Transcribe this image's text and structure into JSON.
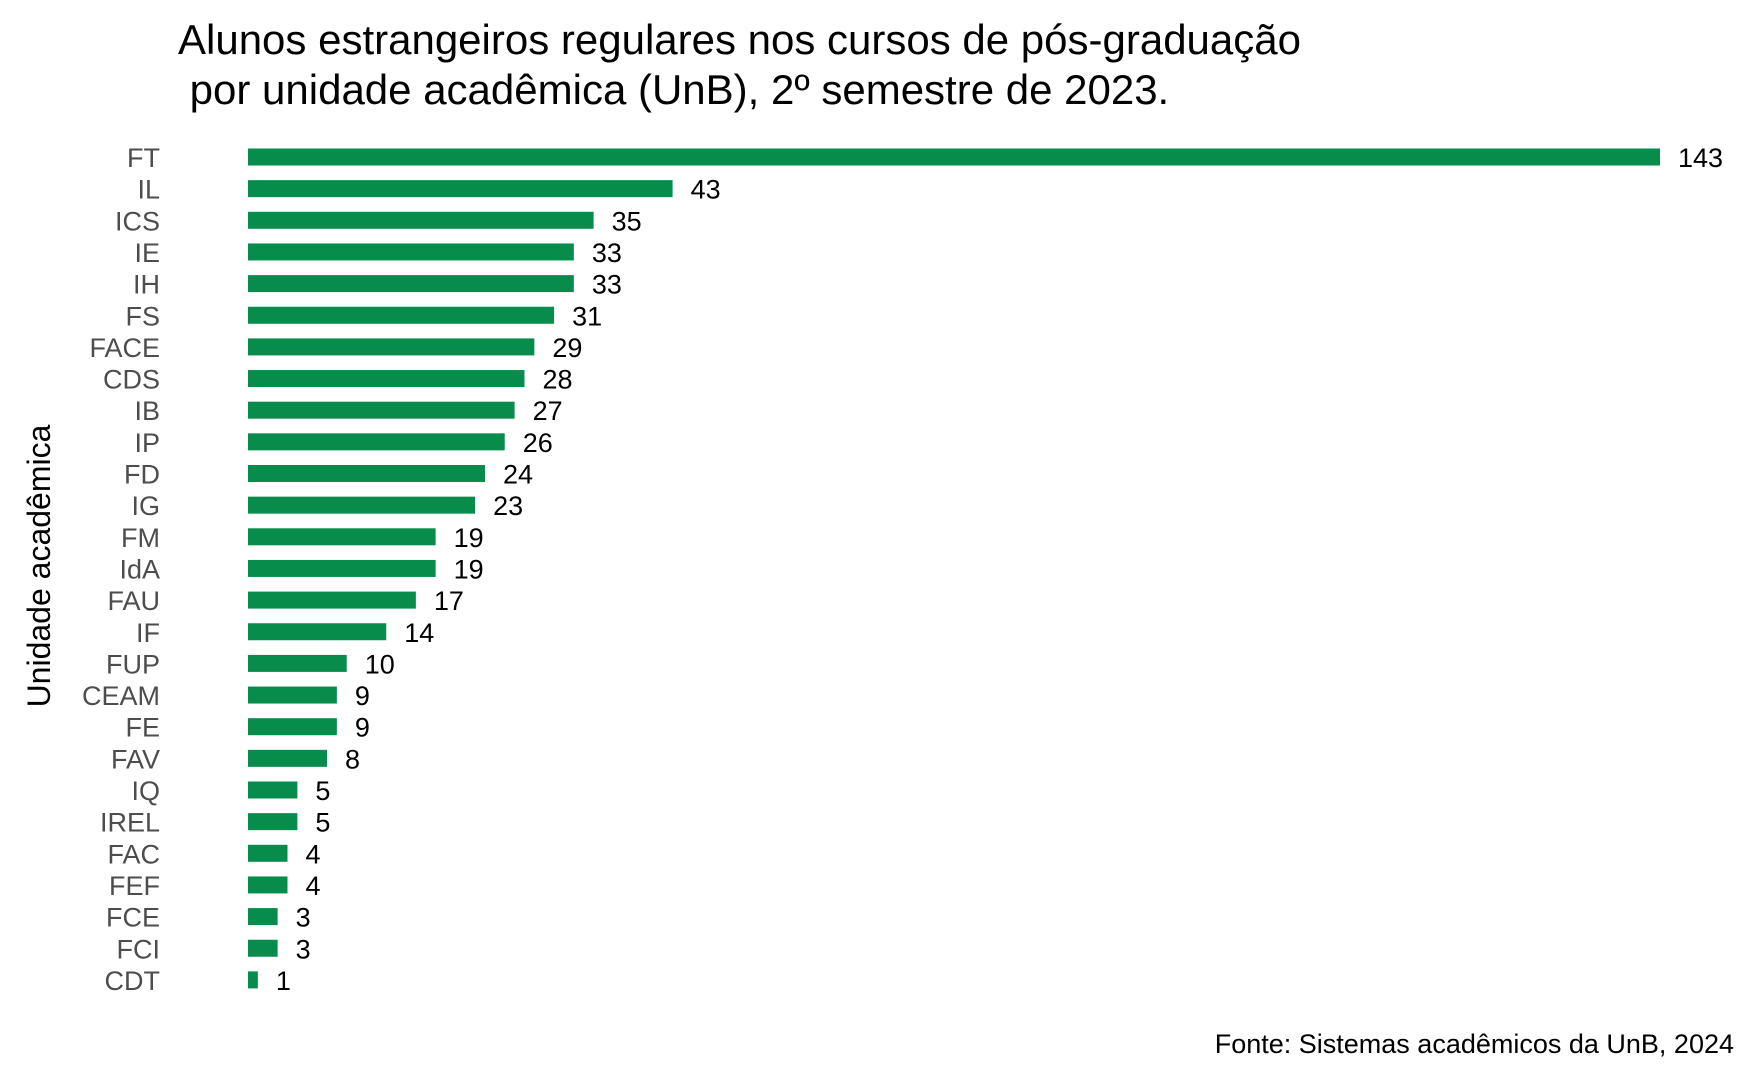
{
  "chart_data": {
    "type": "bar",
    "orientation": "horizontal",
    "title_lines": [
      "Alunos estrangeiros regulares nos cursos de pós-graduação",
      " por unidade acadêmica (UnB), 2º semestre de 2023."
    ],
    "ylabel": "Unidade acadêmica",
    "xlabel": "",
    "caption": "Fonte: Sistemas acadêmicos da UnB, 2024",
    "categories": [
      "FT",
      "IL",
      "ICS",
      "IE",
      "IH",
      "FS",
      "FACE",
      "CDS",
      "IB",
      "IP",
      "FD",
      "IG",
      "FM",
      "IdA",
      "FAU",
      "IF",
      "FUP",
      "CEAM",
      "FE",
      "FAV",
      "IQ",
      "IREL",
      "FAC",
      "FEF",
      "FCE",
      "FCI",
      "CDT"
    ],
    "values": [
      143,
      43,
      35,
      33,
      33,
      31,
      29,
      28,
      27,
      26,
      24,
      23,
      19,
      19,
      17,
      14,
      10,
      9,
      9,
      8,
      5,
      5,
      4,
      4,
      3,
      3,
      1
    ],
    "xlim": [
      0,
      143
    ],
    "bar_color": "#078c4b",
    "grid": false,
    "legend": false
  }
}
